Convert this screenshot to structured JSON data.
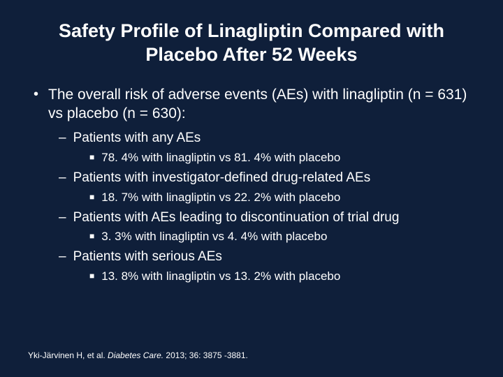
{
  "colors": {
    "background": "#0f1f3a",
    "text": "#ffffff"
  },
  "title": "Safety Profile of Linagliptin Compared with Placebo After 52 Weeks",
  "main_bullet": "The overall risk of adverse events (AEs) with linagliptin (n = 631) vs placebo (n = 630):",
  "sections": [
    {
      "heading": "Patients with any AEs",
      "detail": "78. 4% with linagliptin vs 81. 4% with placebo"
    },
    {
      "heading": "Patients with investigator-defined drug-related AEs",
      "detail": "18. 7% with linagliptin vs 22. 2% with placebo"
    },
    {
      "heading": "Patients with AEs leading to discontinuation of trial drug",
      "detail": "3. 3% with linagliptin vs 4. 4% with placebo"
    },
    {
      "heading": "Patients with serious AEs",
      "detail": "13. 8% with linagliptin vs 13. 2% with placebo"
    }
  ],
  "citation": {
    "prefix": "Yki-Järvinen H, et al. ",
    "journal": "Diabetes Care.",
    "suffix": " 2013; 36: 3875 -3881."
  }
}
